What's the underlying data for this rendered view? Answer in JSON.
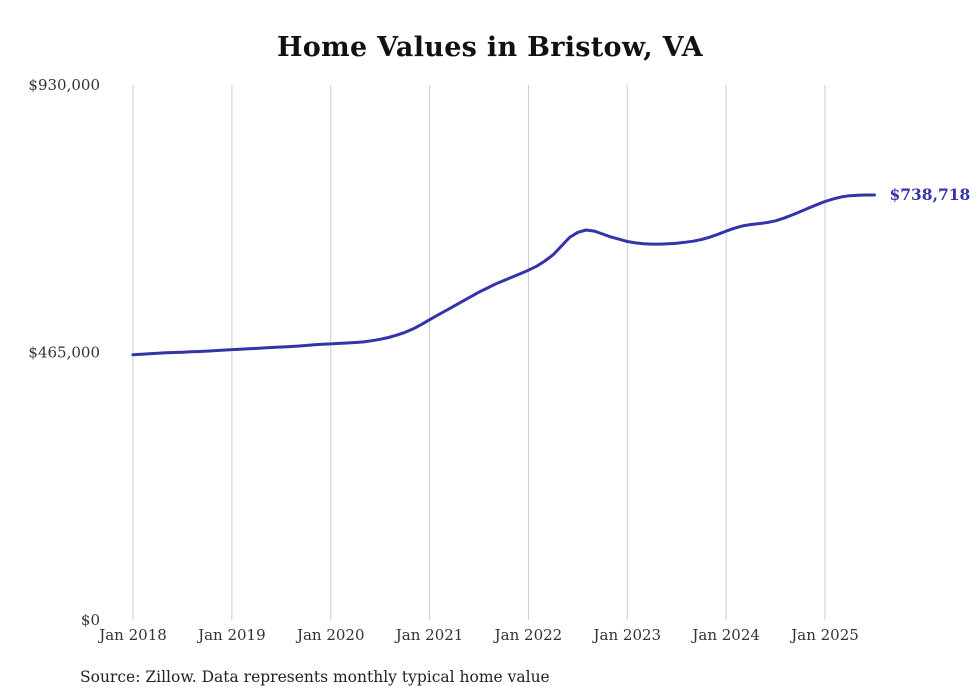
{
  "chart": {
    "title": "Home Values in Bristow, VA",
    "source_note": "Source: Zillow. Data represents monthly typical home value",
    "end_label": "$738,718",
    "line_color": "#3333aa",
    "grid_color": "#cccccc",
    "axis_label_color": "#333333"
  },
  "chart_data": {
    "type": "line",
    "title": "Home Values in Bristow, VA",
    "x_unit": "month",
    "x_start": "2018-01",
    "x_end": "2025-07",
    "x_tick_labels": [
      "Jan 2018",
      "Jan 2019",
      "Jan 2020",
      "Jan 2021",
      "Jan 2022",
      "Jan 2023",
      "Jan 2024",
      "Jan 2025"
    ],
    "y_tick_labels": [
      "$0",
      "$465,000",
      "$930,000"
    ],
    "y_tick_values": [
      0,
      465000,
      930000
    ],
    "ylim": [
      0,
      930000
    ],
    "grid": "vertical-only",
    "legend": "none",
    "final_value": 738718,
    "values": [
      461000,
      462000,
      463000,
      463800,
      464500,
      465000,
      465600,
      466200,
      466800,
      467500,
      468300,
      469200,
      470000,
      470700,
      471400,
      472200,
      473000,
      473800,
      474500,
      475300,
      476200,
      477200,
      478300,
      479200,
      480000,
      480800,
      481500,
      482300,
      483500,
      485500,
      488000,
      491000,
      495000,
      500000,
      506000,
      513500,
      522000,
      530000,
      538000,
      546000,
      554000,
      562000,
      570000,
      577000,
      584000,
      590000,
      596000,
      602000,
      608000,
      615000,
      624000,
      635000,
      650000,
      665000,
      674000,
      678000,
      676000,
      671000,
      666000,
      662000,
      658000,
      655500,
      654000,
      653500,
      653500,
      654000,
      655000,
      656500,
      658500,
      661500,
      665500,
      670500,
      676000,
      681000,
      685000,
      687500,
      689000,
      691000,
      694000,
      698500,
      704000,
      710000,
      716000,
      722000,
      727500,
      732000,
      735500,
      737500,
      738500,
      738718,
      738718
    ]
  }
}
